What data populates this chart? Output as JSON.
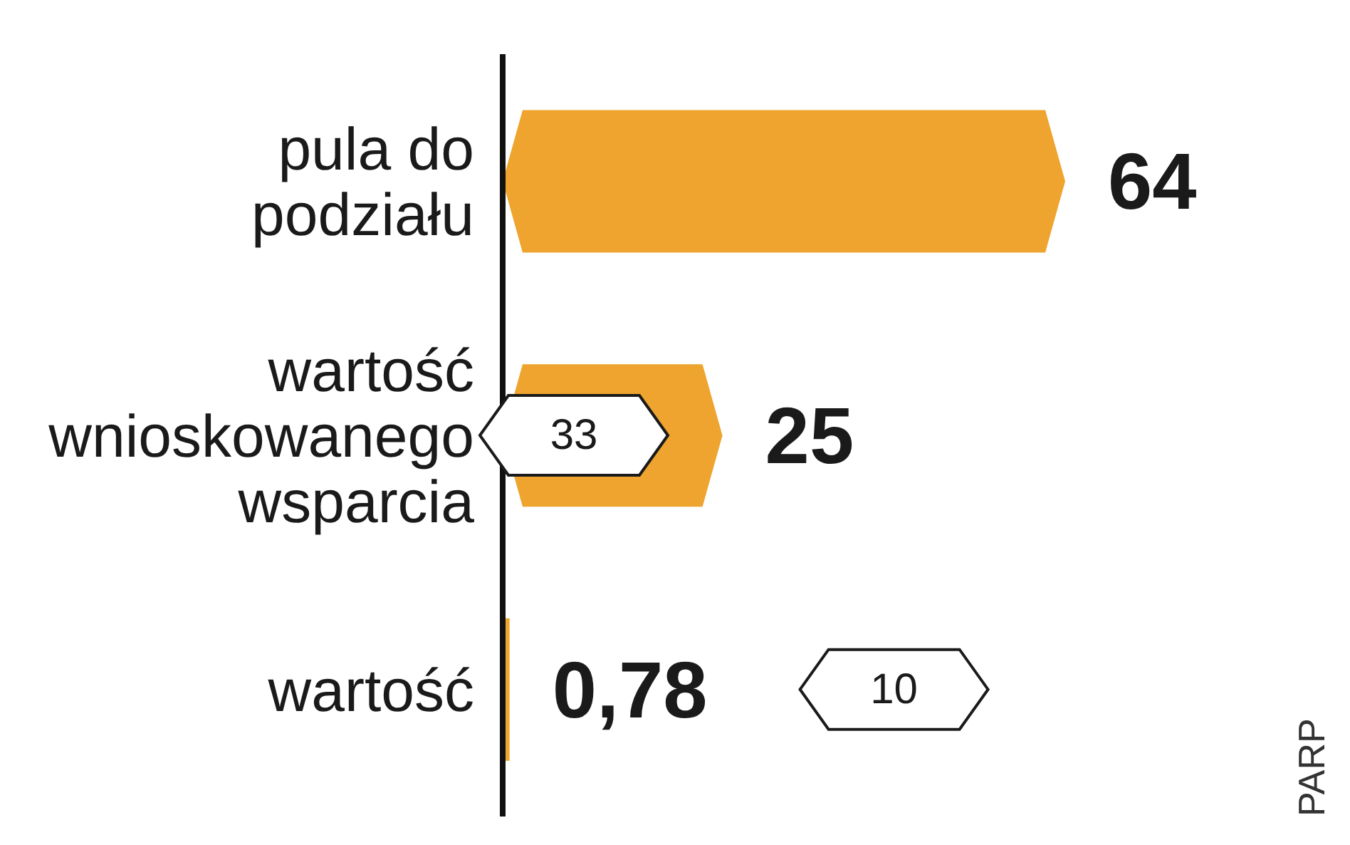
{
  "chart_data": {
    "type": "bar",
    "orientation": "horizontal",
    "categories": [
      "pula do podziału",
      "wartość wnioskowanego wsparcia",
      "wartość"
    ],
    "values": [
      64,
      25,
      0.78
    ],
    "value_labels": [
      "64",
      "25",
      "0,78"
    ],
    "color": "#eea42e",
    "annotations": [
      "33",
      "10",
      "PARP"
    ]
  }
}
